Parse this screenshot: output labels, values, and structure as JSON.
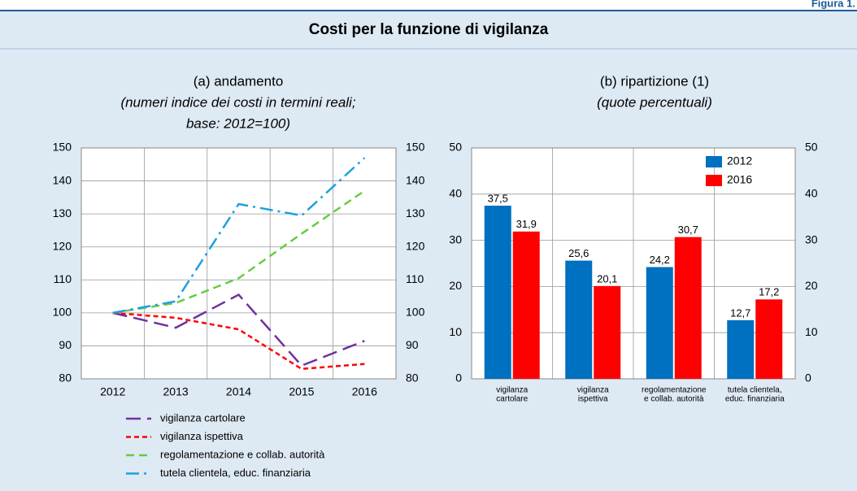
{
  "header": {
    "label": "Figura 1.",
    "title": "Costi per la funzione di vigilanza"
  },
  "chart_data": [
    {
      "type": "line",
      "title": "(a) andamento",
      "subtitle": [
        "(numeri indice dei costi in termini reali;",
        "base: 2012=100)"
      ],
      "categories": [
        "2012",
        "2013",
        "2014",
        "2015",
        "2016"
      ],
      "series": [
        {
          "name": "vigilanza cartolare",
          "color": "#7030a0",
          "dash": "18,8",
          "values": [
            100,
            95.5,
            105.5,
            84,
            91.5
          ]
        },
        {
          "name": "vigilanza ispettiva",
          "color": "#ff0000",
          "dash": "6,4",
          "values": [
            100,
            98.5,
            95,
            83,
            84.5
          ]
        },
        {
          "name": "regolamentazione e collab. autorità",
          "color": "#66cc44",
          "dash": "10,6",
          "values": [
            100,
            103,
            110.5,
            124,
            137
          ]
        },
        {
          "name": "tutela clientela, educ. finanziaria",
          "color": "#1ea0e0",
          "dash": "16,6,3,6",
          "values": [
            100,
            103.5,
            133,
            129.5,
            147
          ]
        }
      ],
      "ylim": [
        80,
        150
      ],
      "yticks": [
        80,
        90,
        100,
        110,
        120,
        130,
        140,
        150
      ],
      "grid": true
    },
    {
      "type": "bar",
      "title": "(b) ripartizione (1)",
      "subtitle": [
        "(quote percentuali)"
      ],
      "categories": [
        [
          "vigilanza",
          "cartolare"
        ],
        [
          "vigilanza",
          "ispettiva"
        ],
        [
          "regolamentazione",
          "e collab. autorità"
        ],
        [
          "tutela clientela,",
          "educ. finanziaria"
        ]
      ],
      "series": [
        {
          "name": "2012",
          "color": "#0070c0",
          "values": [
            37.5,
            25.6,
            24.2,
            12.7
          ],
          "value_labels": [
            "37,5",
            "25,6",
            "24,2",
            "12,7"
          ]
        },
        {
          "name": "2016",
          "color": "#ff0000",
          "values": [
            31.9,
            20.1,
            30.7,
            17.2
          ],
          "value_labels": [
            "31,9",
            "20,1",
            "30,7",
            "17,2"
          ]
        }
      ],
      "ylim": [
        0,
        50
      ],
      "yticks": [
        0,
        10,
        20,
        30,
        40,
        50
      ],
      "grid": true,
      "legend": "top-right"
    }
  ]
}
